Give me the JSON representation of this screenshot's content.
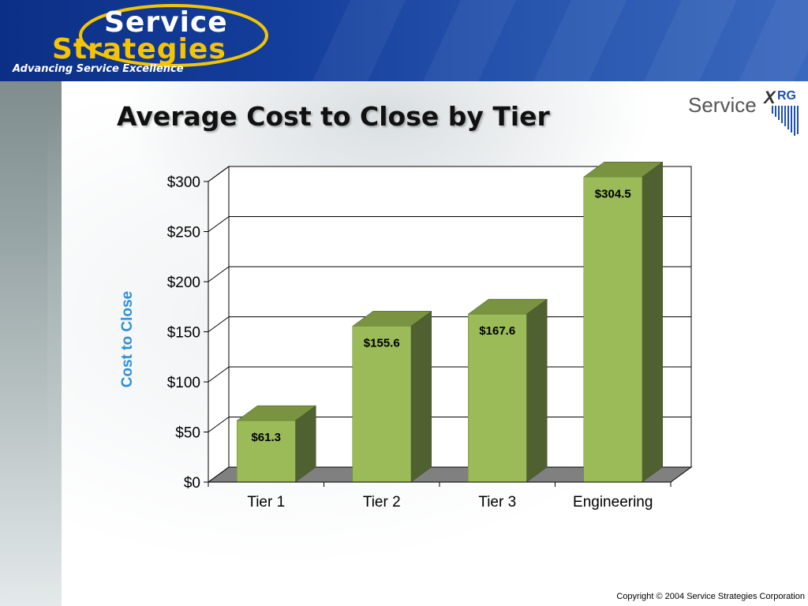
{
  "logo": {
    "line1": "Service",
    "line2": "Strategies",
    "tagline": "Advancing Service Excellence"
  },
  "title": "Average Cost to Close by Tier",
  "xrg_logo": {
    "text": "Service",
    "x": "X",
    "rg": "RG"
  },
  "copyright": "Copyright © 2004 Service Strategies Corporation",
  "colors": {
    "bar_front": "#9bbb59",
    "bar_top": "#7a9340",
    "bar_side": "#4f6130",
    "floor": "#808080",
    "axis_label": "#2f8fd6"
  },
  "chart_data": {
    "type": "bar",
    "title": "Average Cost to Close by Tier",
    "xlabel": "",
    "ylabel": "Cost to Close",
    "categories": [
      "Tier 1",
      "Tier 2",
      "Tier 3",
      "Engineering"
    ],
    "values": [
      61.3,
      155.6,
      167.6,
      304.5
    ],
    "data_labels": [
      "$61.3",
      "$155.6",
      "$167.6",
      "$304.5"
    ],
    "ylim": [
      0,
      300
    ],
    "yticks": [
      0,
      50,
      100,
      150,
      200,
      250,
      300
    ],
    "ytick_labels": [
      "$0",
      "$50",
      "$100",
      "$150",
      "$200",
      "$250",
      "$300"
    ],
    "grid": true,
    "legend": "none",
    "style": "3d"
  }
}
